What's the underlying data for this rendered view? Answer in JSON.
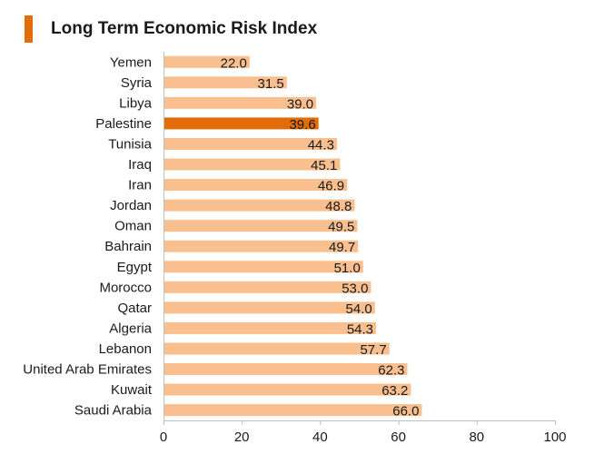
{
  "chart_data": {
    "type": "bar",
    "orientation": "horizontal",
    "title": "Long Term Economic Risk Index",
    "categories": [
      "Yemen",
      "Syria",
      "Libya",
      "Palestine",
      "Tunisia",
      "Iraq",
      "Iran",
      "Jordan",
      "Oman",
      "Bahrain",
      "Egypt",
      "Morocco",
      "Qatar",
      "Algeria",
      "Lebanon",
      "United Arab Emirates",
      "Kuwait",
      "Saudi Arabia"
    ],
    "values": [
      22.0,
      31.5,
      39.0,
      39.6,
      44.3,
      45.1,
      46.9,
      48.8,
      49.5,
      49.7,
      51.0,
      53.0,
      54.0,
      54.3,
      57.7,
      62.3,
      63.2,
      66.0
    ],
    "value_labels": [
      "22.0",
      "31.5",
      "39.0",
      "39.6",
      "44.3",
      "45.1",
      "46.9",
      "48.8",
      "49.5",
      "49.7",
      "51.0",
      "53.0",
      "54.0",
      "54.3",
      "57.7",
      "62.3",
      "63.2",
      "66.0"
    ],
    "highlight": "Palestine",
    "xlim": [
      0,
      100
    ],
    "xticks": [
      0,
      20,
      40,
      60,
      80,
      100
    ],
    "xlabel": "",
    "ylabel": "",
    "grid": false,
    "legend": "none",
    "colors": {
      "bar": "#f9bf8f",
      "highlight": "#e36c0a",
      "title_marker": "#e36c0a",
      "axis": "#bfbfbf",
      "text": "#1a1a1a"
    }
  }
}
